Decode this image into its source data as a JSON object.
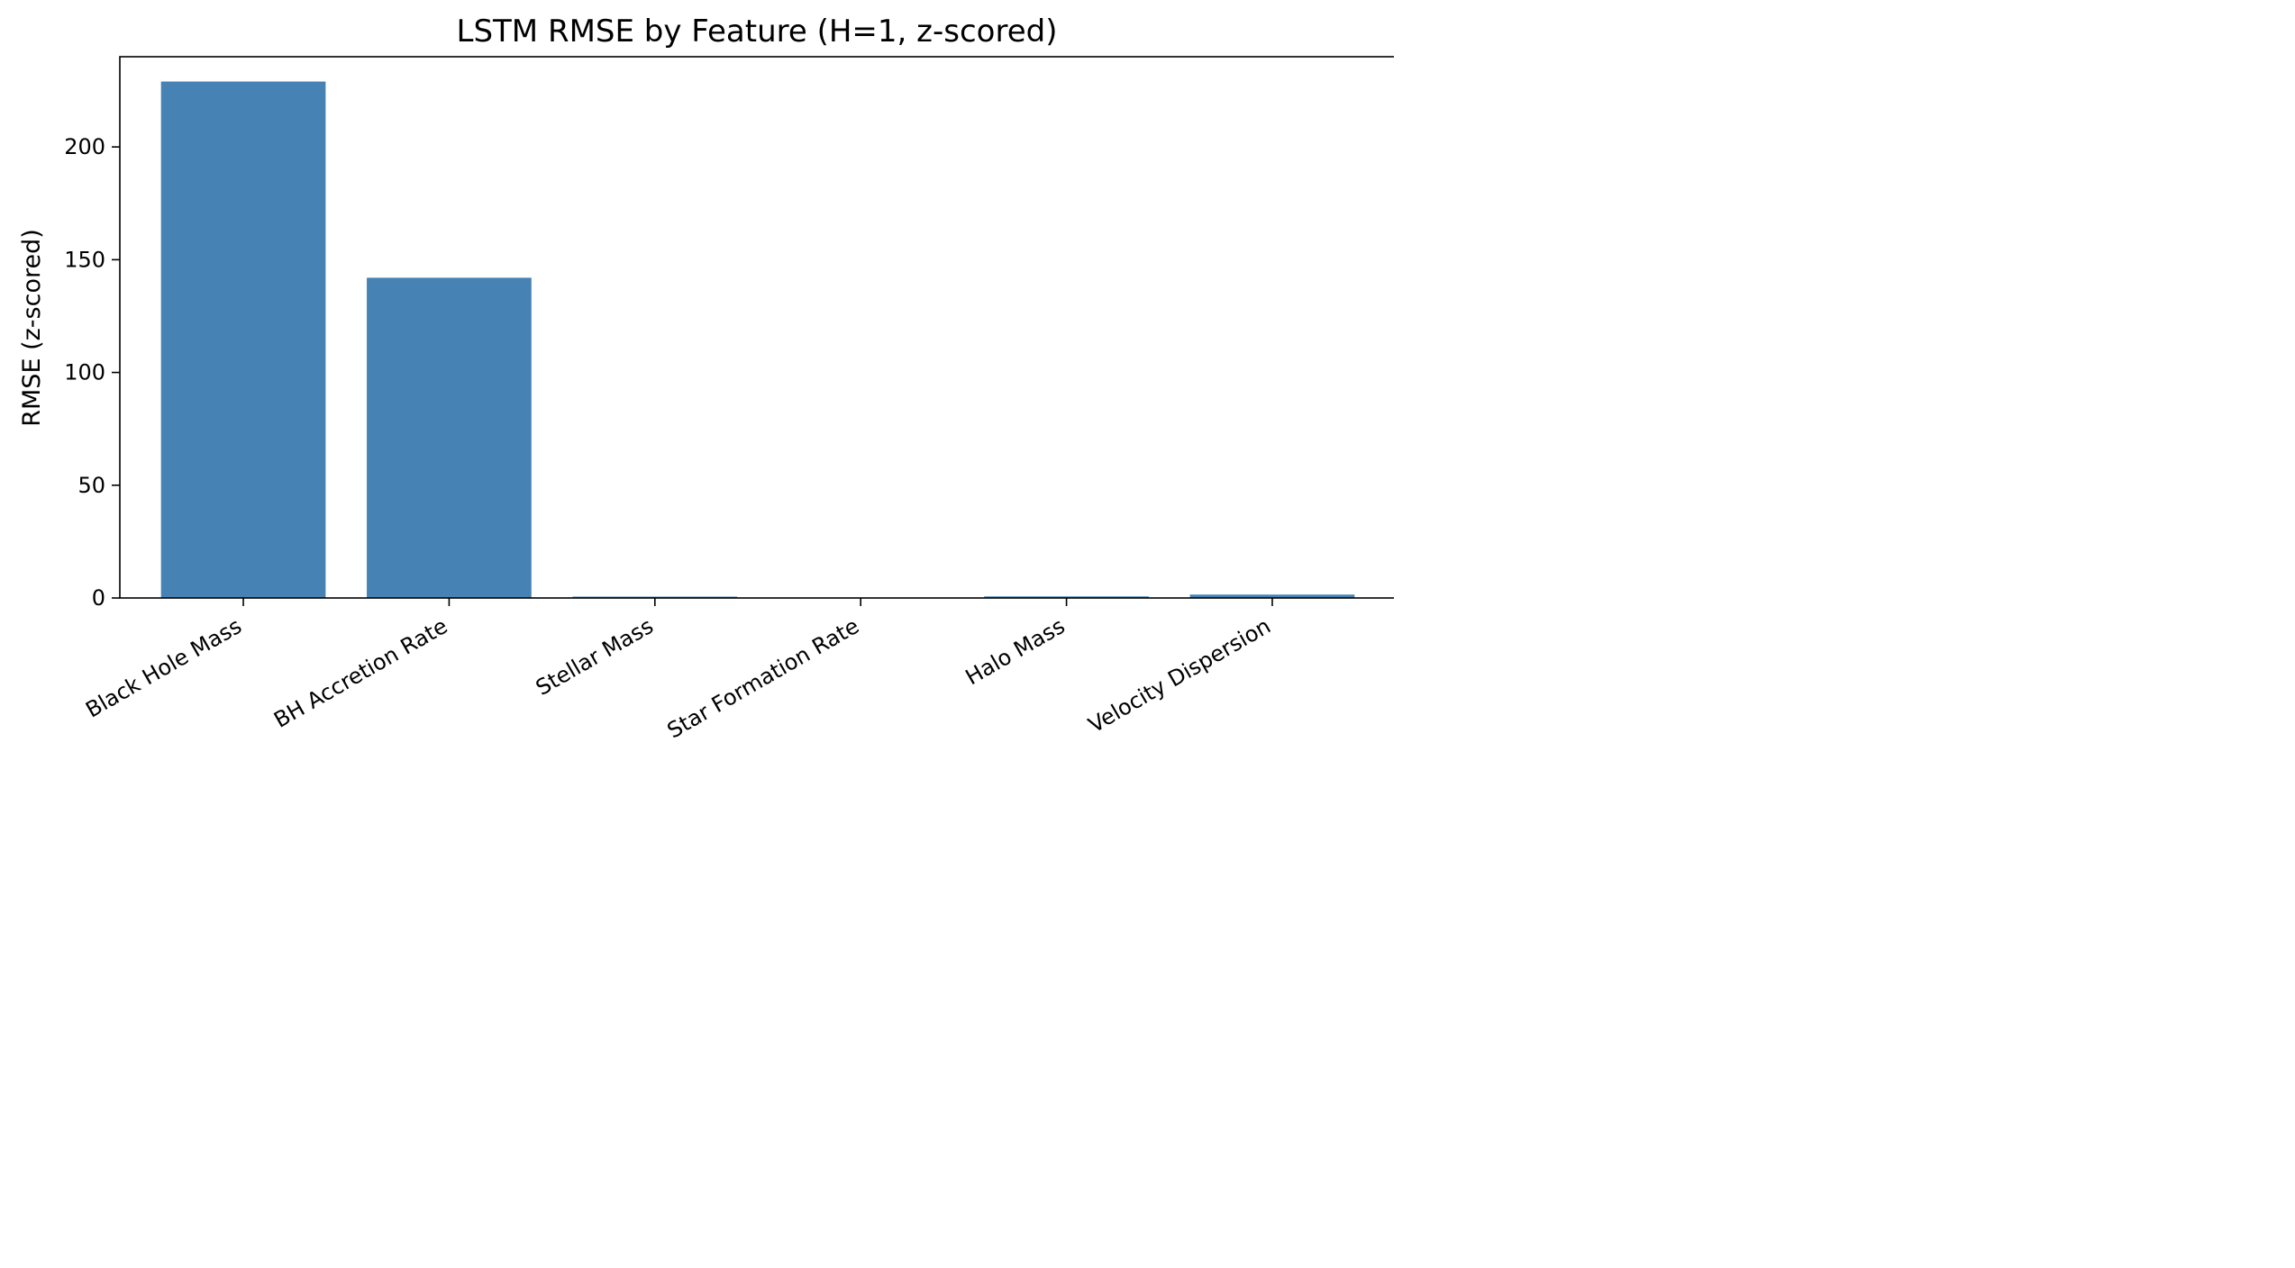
{
  "chart_data": {
    "type": "bar",
    "title": "LSTM RMSE by Feature (H=1, z-scored)",
    "xlabel": "",
    "ylabel": "RMSE (z-scored)",
    "categories": [
      "Black Hole Mass",
      "BH Accretion Rate",
      "Stellar Mass",
      "Star Formation Rate",
      "Halo Mass",
      "Velocity Dispersion"
    ],
    "values": [
      229,
      142,
      0.6,
      0.2,
      0.7,
      1.5
    ],
    "ylim": [
      0,
      240
    ],
    "yticks": [
      0,
      50,
      100,
      150,
      200
    ],
    "grid": false,
    "legend": "none",
    "bar_color": "#4682b4"
  }
}
